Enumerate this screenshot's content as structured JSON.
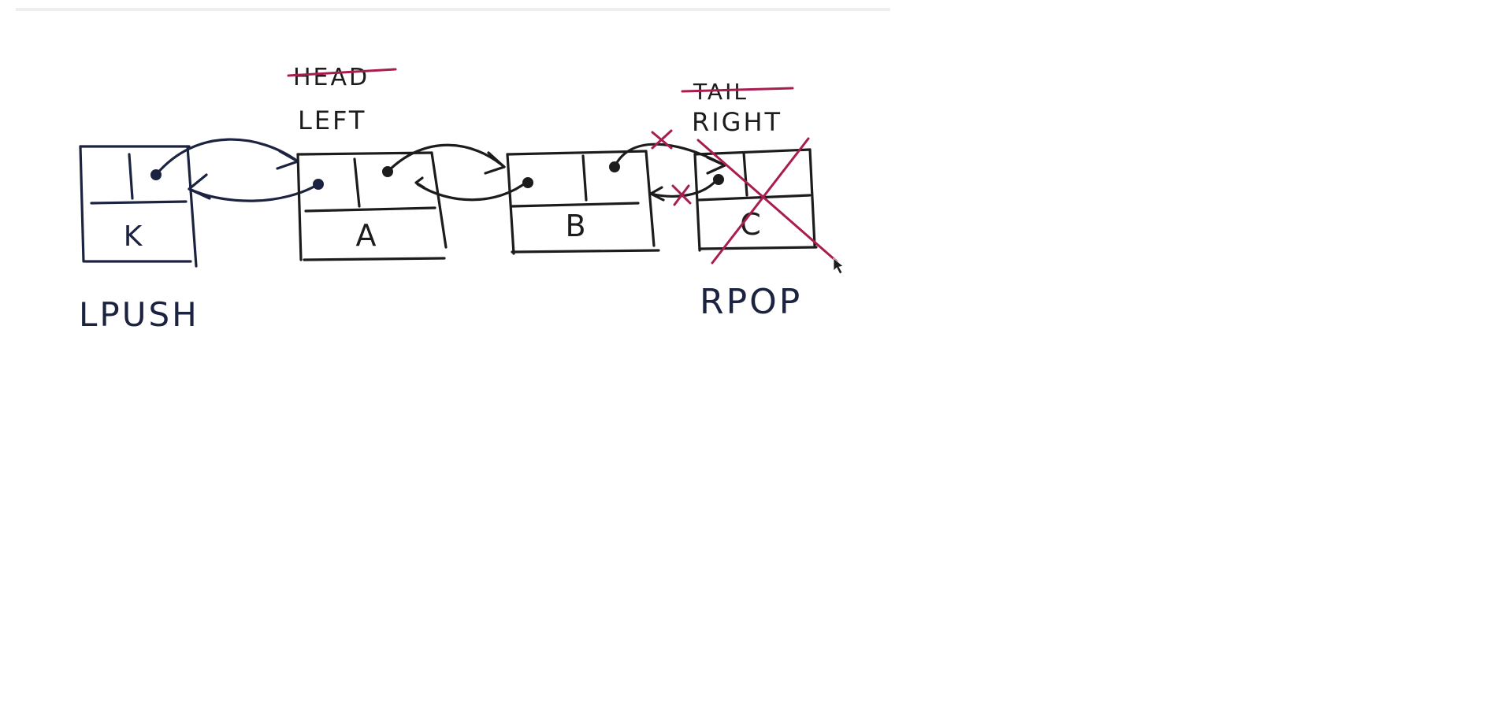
{
  "colors": {
    "ink": "#1c1c1c",
    "navy_ink": "#1b2340",
    "strike_red": "#a81c4f",
    "background": "#ffffff"
  },
  "labels": {
    "head": "HEAD",
    "left": "LEFT",
    "tail": "TAIL",
    "right": "RIGHT",
    "lpush": "LPUSH",
    "rpop": "RPOP"
  },
  "nodes": [
    {
      "id": "k",
      "value": "K"
    },
    {
      "id": "a",
      "value": "A"
    },
    {
      "id": "b",
      "value": "B"
    },
    {
      "id": "c",
      "value": "C"
    }
  ],
  "annotations": {
    "head_struck": true,
    "tail_struck": true,
    "node_c_crossed_out": true,
    "cursor_icon": "mouse-pointer-icon"
  }
}
